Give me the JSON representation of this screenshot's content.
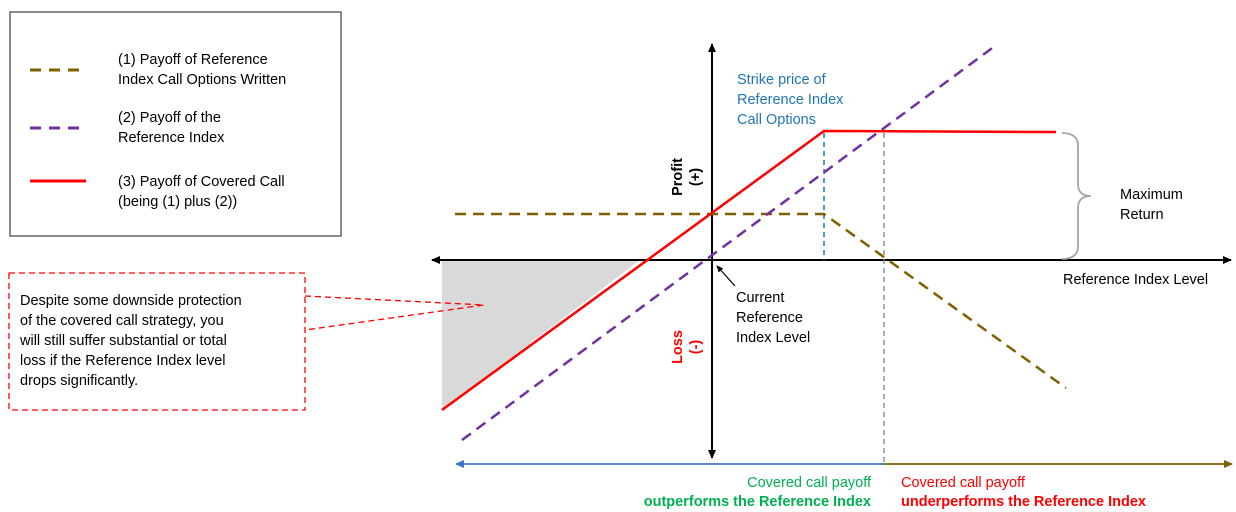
{
  "legend": {
    "items": [
      {
        "lines": [
          "(1) Payoff of Reference",
          "Index Call Options Written"
        ],
        "color": "#7f6000",
        "style": "dashed"
      },
      {
        "lines": [
          "(2) Payoff of the",
          "Reference Index"
        ],
        "color": "#7030a0",
        "style": "dashed"
      },
      {
        "lines": [
          "(3) Payoff of Covered Call",
          "(being (1) plus (2))"
        ],
        "color": "#ff0000",
        "style": "solid"
      }
    ]
  },
  "callout": {
    "lines": [
      "Despite some downside protection",
      "of the covered call strategy, you",
      "will still suffer substantial or total",
      "loss if the Reference Index level",
      "drops significantly."
    ],
    "color": "#ff0000"
  },
  "axes": {
    "profit": [
      "Profit",
      "(+)"
    ],
    "loss": [
      "Loss",
      "(-)"
    ],
    "x_label": "Reference Index Level",
    "loss_color": "#ff0000"
  },
  "annotations": {
    "strike_price": [
      "Strike price of",
      "Reference Index",
      "Call Options"
    ],
    "strike_color": "#1f77b4",
    "current_level": [
      "Current",
      "Reference",
      "Index Level"
    ],
    "max_return": [
      "Maximum",
      "Return"
    ]
  },
  "bottom": {
    "left": {
      "line1": "Covered call payoff",
      "line2": "outperforms the Reference Index",
      "color": "#00b050",
      "arrow_color": "#4472c4"
    },
    "right": {
      "line1": "Covered call payoff",
      "line2": "underperforms the Reference Index",
      "color": "#ff0000",
      "arrow_color": "#7f6000"
    }
  },
  "colors": {
    "shaded_loss": "#d9d9d9",
    "axis": "#000000",
    "guide": "#7f7f7f",
    "brace": "#a6a6a6"
  }
}
